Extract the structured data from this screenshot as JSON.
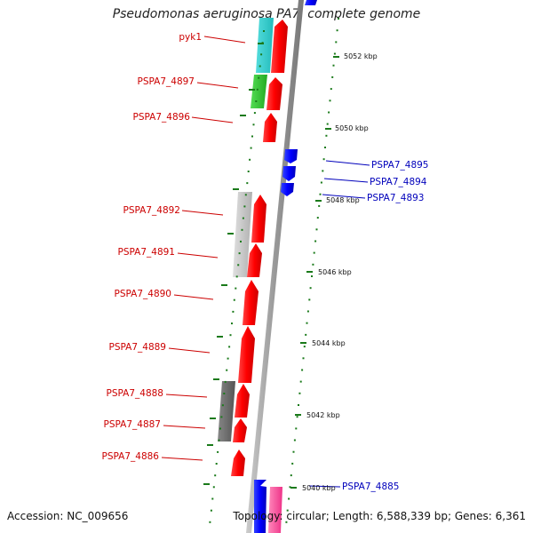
{
  "title": "Pseudomonas aeruginosa PA7, complete genome",
  "footer": {
    "accession": "Accession: NC_009656",
    "topology": "Topology: circular; Length: 6,588,339 bp; Genes: 6,361"
  },
  "scale_ticks": [
    "5052 kbp",
    "5050 kbp",
    "5048 kbp",
    "5046 kbp",
    "5044 kbp",
    "5042 kbp",
    "5040 kbp"
  ],
  "gene_labels_left": [
    "pyk1",
    "PSPA7_4897",
    "PSPA7_4896",
    "PSPA7_4892",
    "PSPA7_4891",
    "PSPA7_4890",
    "PSPA7_4889",
    "PSPA7_4888",
    "PSPA7_4887",
    "PSPA7_4886"
  ],
  "gene_labels_right": [
    "PSPA7_4895",
    "PSPA7_4894",
    "PSPA7_4893",
    "PSPA7_4885"
  ],
  "colors": {
    "forward_gene": "#ff1a1a",
    "reverse_gene": "#1a1aee",
    "forward_label": "#cc0000",
    "reverse_label": "#0000bb",
    "backbone": "#999999",
    "tick": "#1a7a1a",
    "cog_cyan": "#33cccc",
    "cog_green": "#33cc33",
    "cog_lightgray": "#c8c8c8",
    "cog_darkgray": "#777777",
    "cog_pink": "#ff66aa"
  }
}
